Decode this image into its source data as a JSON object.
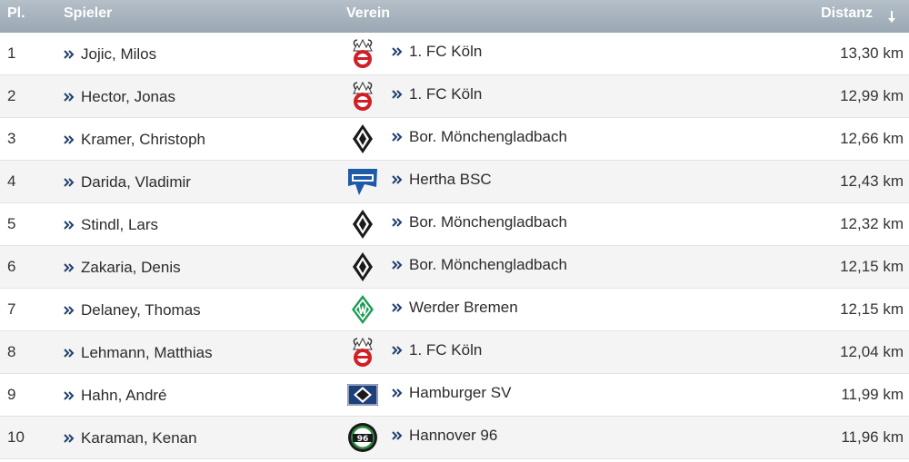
{
  "header": {
    "rank": "Pl.",
    "player": "Spieler",
    "club": "Verein",
    "distance": "Distanz"
  },
  "sort_icon": "sort-down-icon",
  "rows": [
    {
      "rank": "1",
      "player": "Jojic, Milos",
      "club": "1. FC Köln",
      "crest": "koeln-crest-icon",
      "distance": "13,30 km"
    },
    {
      "rank": "2",
      "player": "Hector, Jonas",
      "club": "1. FC Köln",
      "crest": "koeln-crest-icon",
      "distance": "12,99 km"
    },
    {
      "rank": "3",
      "player": "Kramer, Christoph",
      "club": "Bor. Mönchengladbach",
      "crest": "gladbach-crest-icon",
      "distance": "12,66 km"
    },
    {
      "rank": "4",
      "player": "Darida, Vladimir",
      "club": "Hertha BSC",
      "crest": "hertha-crest-icon",
      "distance": "12,43 km"
    },
    {
      "rank": "5",
      "player": "Stindl, Lars",
      "club": "Bor. Mönchengladbach",
      "crest": "gladbach-crest-icon",
      "distance": "12,32 km"
    },
    {
      "rank": "6",
      "player": "Zakaria, Denis",
      "club": "Bor. Mönchengladbach",
      "crest": "gladbach-crest-icon",
      "distance": "12,15 km"
    },
    {
      "rank": "7",
      "player": "Delaney, Thomas",
      "club": "Werder Bremen",
      "crest": "werder-crest-icon",
      "distance": "12,15 km"
    },
    {
      "rank": "8",
      "player": "Lehmann, Matthias",
      "club": "1. FC Köln",
      "crest": "koeln-crest-icon",
      "distance": "12,04 km"
    },
    {
      "rank": "9",
      "player": "Hahn, André",
      "club": "Hamburger SV",
      "crest": "hsv-crest-icon",
      "distance": "11,99 km"
    },
    {
      "rank": "10",
      "player": "Karaman, Kenan",
      "club": "Hannover 96",
      "crest": "hannover-crest-icon",
      "distance": "11,96 km"
    }
  ],
  "colors": {
    "header_bg": "#a4b0ba",
    "arrow": "#1f3f6e",
    "row_alt": "#f4f4f4"
  }
}
